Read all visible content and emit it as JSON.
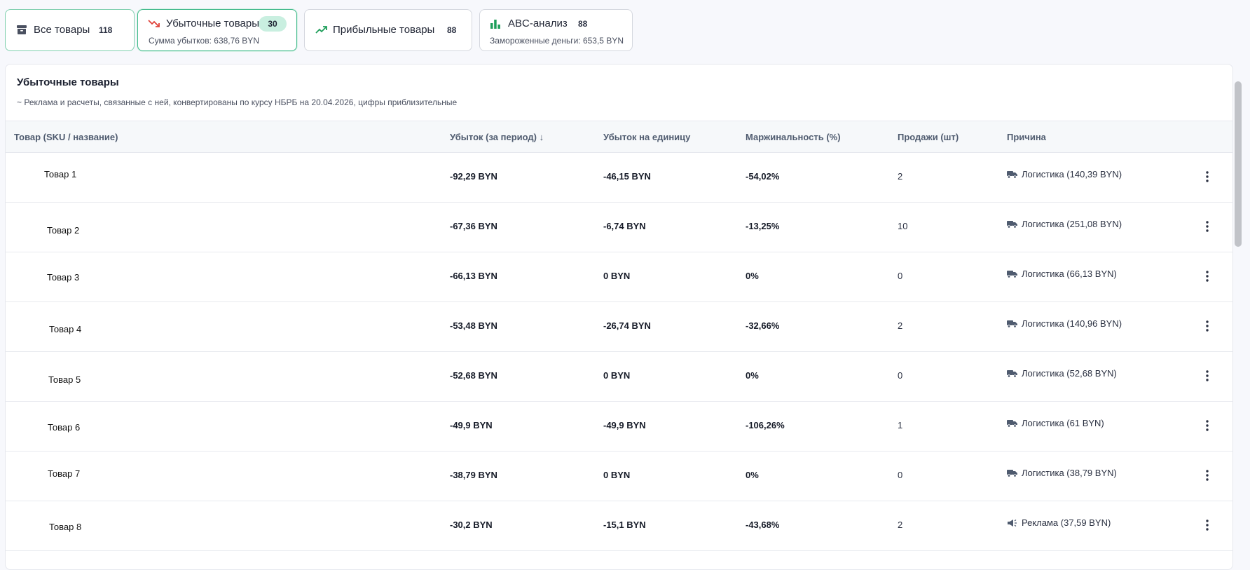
{
  "tabs": [
    {
      "label": "Все товары",
      "count": "118"
    },
    {
      "label": "Убыточные товары",
      "count": "30",
      "sub": "Сумма убытков: 638,76 BYN"
    },
    {
      "label": "Прибыльные товары",
      "count": "88"
    },
    {
      "label": "ABC-анализ",
      "count": "88",
      "sub": "Замороженные деньги: 653,5 BYN"
    }
  ],
  "table": {
    "title": "Убыточные товары",
    "note": "~ Реклама и расчеты, связанные с ней, конвертированы по курсу НБРБ на 20.04.2026, цифры приблизительные",
    "columns": [
      "Товар (SKU / название)",
      "Убыток (за период) ↓",
      "Убыток на единицу",
      "Маржинальность (%)",
      "Продажи (шт)",
      "Причина"
    ],
    "rows": [
      {
        "name": "Товар 1",
        "loss": "-92,29 BYN",
        "unit": "-46,15 BYN",
        "margin": "-54,02%",
        "sales": "2",
        "reason": "Логистика (140,39 BYN)",
        "icon": "truck-icon"
      },
      {
        "name": "Товар 2",
        "loss": "-67,36 BYN",
        "unit": "-6,74 BYN",
        "margin": "-13,25%",
        "sales": "10",
        "reason": "Логистика (251,08 BYN)",
        "icon": "truck-icon"
      },
      {
        "name": "Товар 3",
        "loss": "-66,13 BYN",
        "unit": "0 BYN",
        "margin": "0%",
        "sales": "0",
        "reason": "Логистика (66,13 BYN)",
        "icon": "truck-icon"
      },
      {
        "name": "Товар 4",
        "loss": "-53,48 BYN",
        "unit": "-26,74 BYN",
        "margin": "-32,66%",
        "sales": "2",
        "reason": "Логистика (140,96 BYN)",
        "icon": "truck-icon"
      },
      {
        "name": "Товар 5",
        "loss": "-52,68 BYN",
        "unit": "0 BYN",
        "margin": "0%",
        "sales": "0",
        "reason": "Логистика (52,68 BYN)",
        "icon": "truck-icon"
      },
      {
        "name": "Товар 6",
        "loss": "-49,9 BYN",
        "unit": "-49,9 BYN",
        "margin": "-106,26%",
        "sales": "1",
        "reason": "Логистика (61 BYN)",
        "icon": "truck-icon"
      },
      {
        "name": "Товар 7",
        "loss": "-38,79 BYN",
        "unit": "0 BYN",
        "margin": "0%",
        "sales": "0",
        "reason": "Логистика (38,79 BYN)",
        "icon": "truck-icon"
      },
      {
        "name": "Товар 8",
        "loss": "-30,2 BYN",
        "unit": "-15,1 BYN",
        "margin": "-43,68%",
        "sales": "2",
        "reason": "Реклама (37,59 BYN)",
        "icon": "megaphone-icon"
      }
    ]
  },
  "colors": {
    "accent": "#3fb98a",
    "loss_red": "#e0433b",
    "profit_green": "#1e9e5a"
  }
}
